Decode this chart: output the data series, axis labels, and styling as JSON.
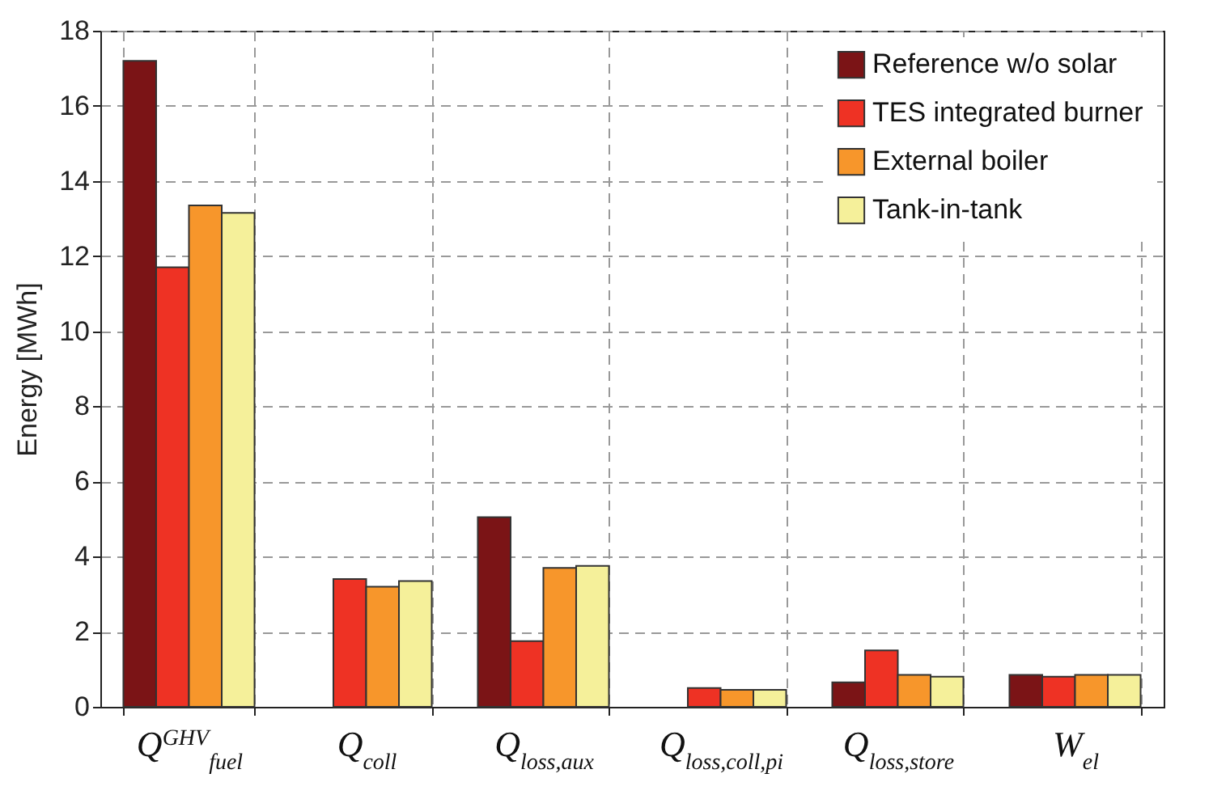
{
  "chart_data": {
    "type": "bar",
    "ylabel": "Energy [MWh]",
    "categories": [
      "Q$^{GHV}$$_{fuel}$",
      "Q$_{coll}$",
      "Q$_{loss,aux}$",
      "Q$_{loss,coll,pi}$",
      "Q$_{loss,store}$",
      "W$_{el}$"
    ],
    "series": [
      {
        "name": "Reference w/o solar",
        "color": "#7b1416",
        "values": [
          17.2,
          null,
          5.05,
          null,
          0.65,
          0.85
        ]
      },
      {
        "name": "TES integrated burner",
        "color": "#ee3224",
        "values": [
          11.7,
          3.4,
          1.75,
          0.5,
          1.5,
          0.8
        ]
      },
      {
        "name": "External boiler",
        "color": "#f7962b",
        "values": [
          13.35,
          3.2,
          3.7,
          0.45,
          0.85,
          0.85
        ]
      },
      {
        "name": "Tank-in-tank",
        "color": "#f5f09a",
        "values": [
          13.15,
          3.35,
          3.75,
          0.45,
          0.8,
          0.85
        ]
      }
    ],
    "ylim": [
      0,
      18
    ],
    "yticks": [
      0,
      2,
      4,
      6,
      8,
      10,
      12,
      14,
      16,
      18
    ],
    "grid": true,
    "legend": "top right"
  }
}
